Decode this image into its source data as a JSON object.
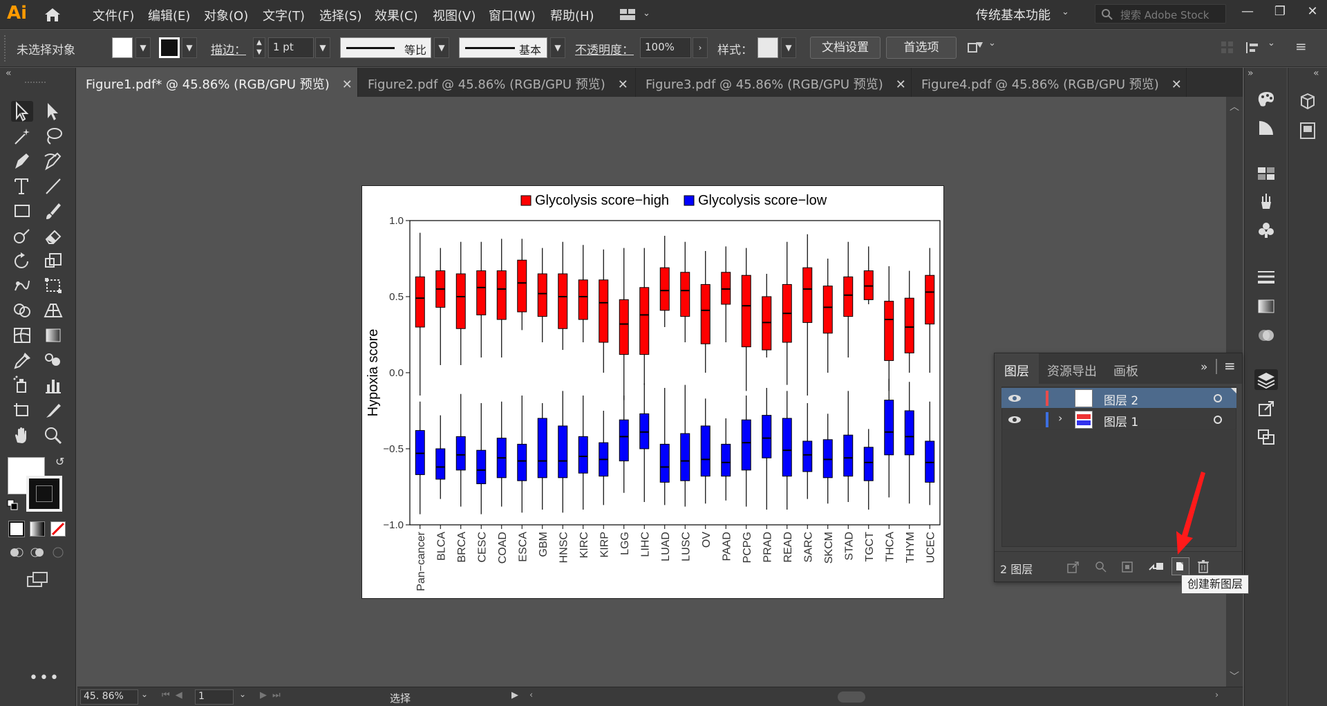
{
  "app": {
    "logo": "Ai",
    "menus": [
      "文件(F)",
      "编辑(E)",
      "对象(O)",
      "文字(T)",
      "选择(S)",
      "效果(C)",
      "视图(V)",
      "窗口(W)",
      "帮助(H)"
    ],
    "workspace": "传统基本功能",
    "stock_placeholder": "搜索 Adobe Stock"
  },
  "control": {
    "selection": "未选择对象",
    "stroke_label": "描边：",
    "stroke_value": "1 pt",
    "profile_label": "等比",
    "brush_label": "基本",
    "opacity_label": "不透明度：",
    "opacity_value": "100%",
    "style_label": "样式：",
    "doc_setup": "文档设置",
    "preferences": "首选项"
  },
  "tabs": [
    {
      "label": "Figure1.pdf* @ 45.86% (RGB/GPU 预览)",
      "active": true
    },
    {
      "label": "Figure2.pdf @ 45.86% (RGB/GPU 预览)",
      "active": false
    },
    {
      "label": "Figure3.pdf @ 45.86% (RGB/GPU 预览)",
      "active": false
    },
    {
      "label": "Figure4.pdf @ 45.86% (RGB/GPU 预览)",
      "active": false
    }
  ],
  "status": {
    "zoom": "45. 86%",
    "artboard": "1",
    "tool": "选择"
  },
  "layers_panel": {
    "tabs": [
      "图层",
      "资源导出",
      "画板"
    ],
    "layers": [
      {
        "name": "图层 2",
        "color": "#e84c4c",
        "selected": true
      },
      {
        "name": "图层 1",
        "color": "#3d6fe0",
        "selected": false
      }
    ],
    "count": "2 图层",
    "tooltip": "创建新图层"
  },
  "colors": {
    "high": "#ff0000",
    "low": "#0000ff",
    "selection": "#4d6a8c"
  },
  "chart_data": {
    "type": "boxplot",
    "ylabel": "Hypoxia score",
    "yticks": [
      "1.0",
      "0.5",
      "0.0",
      "−0.5",
      "−1.0"
    ],
    "ylim": [
      -1.0,
      1.0
    ],
    "legend_position": "top",
    "categories": [
      "Pan−cancer",
      "BLCA",
      "BRCA",
      "CESC",
      "COAD",
      "ESCA",
      "GBM",
      "HNSC",
      "KIRC",
      "KIRP",
      "LGG",
      "LIHC",
      "LUAD",
      "LUSC",
      "OV",
      "PAAD",
      "PCPG",
      "PRAD",
      "READ",
      "SARC",
      "SKCM",
      "STAD",
      "TGCT",
      "THCA",
      "THYM",
      "UCEC"
    ],
    "series": [
      {
        "name": "Glycolysis score−high",
        "color": "#ff0000",
        "boxes": [
          [
            -0.15,
            0.3,
            0.49,
            0.63,
            0.92
          ],
          [
            0.05,
            0.43,
            0.55,
            0.67,
            0.82
          ],
          [
            0.05,
            0.29,
            0.5,
            0.65,
            0.86
          ],
          [
            0.1,
            0.38,
            0.56,
            0.67,
            0.86
          ],
          [
            0.1,
            0.35,
            0.55,
            0.67,
            0.88
          ],
          [
            0.28,
            0.4,
            0.59,
            0.74,
            0.88
          ],
          [
            0.2,
            0.37,
            0.52,
            0.65,
            0.82
          ],
          [
            0.15,
            0.29,
            0.5,
            0.65,
            0.86
          ],
          [
            0.2,
            0.35,
            0.5,
            0.61,
            0.84
          ],
          [
            0.0,
            0.2,
            0.46,
            0.61,
            0.81
          ],
          [
            -0.18,
            0.12,
            0.32,
            0.48,
            0.82
          ],
          [
            -0.08,
            0.12,
            0.38,
            0.56,
            0.82
          ],
          [
            0.3,
            0.41,
            0.54,
            0.69,
            0.9
          ],
          [
            0.2,
            0.37,
            0.54,
            0.66,
            0.86
          ],
          [
            0.0,
            0.19,
            0.41,
            0.58,
            0.8
          ],
          [
            0.2,
            0.45,
            0.55,
            0.66,
            0.83
          ],
          [
            -0.12,
            0.17,
            0.44,
            0.64,
            0.82
          ],
          [
            0.1,
            0.15,
            0.33,
            0.5,
            0.65
          ],
          [
            -0.08,
            0.2,
            0.39,
            0.58,
            0.86
          ],
          [
            -0.15,
            0.33,
            0.55,
            0.69,
            0.91
          ],
          [
            0.0,
            0.26,
            0.43,
            0.57,
            0.75
          ],
          [
            0.1,
            0.37,
            0.51,
            0.63,
            0.86
          ],
          [
            0.45,
            0.48,
            0.57,
            0.67,
            0.83
          ],
          [
            -0.12,
            0.08,
            0.35,
            0.47,
            0.7
          ],
          [
            0.0,
            0.13,
            0.3,
            0.49,
            0.67
          ],
          [
            0.0,
            0.32,
            0.53,
            0.64,
            0.82
          ]
        ]
      },
      {
        "name": "Glycolysis score−low",
        "color": "#0000ff",
        "boxes": [
          [
            -0.93,
            -0.67,
            -0.53,
            -0.38,
            -0.19
          ],
          [
            -0.83,
            -0.7,
            -0.62,
            -0.5,
            -0.28
          ],
          [
            -0.88,
            -0.64,
            -0.54,
            -0.42,
            -0.14
          ],
          [
            -0.93,
            -0.73,
            -0.64,
            -0.51,
            -0.2
          ],
          [
            -0.88,
            -0.69,
            -0.56,
            -0.43,
            -0.19
          ],
          [
            -0.92,
            -0.71,
            -0.58,
            -0.47,
            -0.15
          ],
          [
            -0.9,
            -0.69,
            -0.58,
            -0.3,
            -0.2
          ],
          [
            -0.92,
            -0.69,
            -0.58,
            -0.35,
            -0.12
          ],
          [
            -0.9,
            -0.66,
            -0.55,
            -0.42,
            -0.15
          ],
          [
            -0.87,
            -0.68,
            -0.57,
            -0.46,
            -0.25
          ],
          [
            -0.79,
            -0.58,
            -0.42,
            -0.31,
            -0.15
          ],
          [
            -0.85,
            -0.5,
            -0.39,
            -0.27,
            -0.07
          ],
          [
            -0.87,
            -0.72,
            -0.62,
            -0.47,
            -0.1
          ],
          [
            -0.88,
            -0.71,
            -0.58,
            -0.4,
            -0.08
          ],
          [
            -0.86,
            -0.68,
            -0.57,
            -0.35,
            -0.17
          ],
          [
            -0.84,
            -0.68,
            -0.59,
            -0.47,
            -0.3
          ],
          [
            -0.88,
            -0.64,
            -0.46,
            -0.31,
            -0.15
          ],
          [
            -0.9,
            -0.56,
            -0.43,
            -0.28,
            -0.1
          ],
          [
            -0.9,
            -0.68,
            -0.51,
            -0.3,
            -0.12
          ],
          [
            -0.83,
            -0.65,
            -0.54,
            -0.45,
            -0.2
          ],
          [
            -0.86,
            -0.69,
            -0.57,
            -0.44,
            -0.27
          ],
          [
            -0.85,
            -0.68,
            -0.56,
            -0.41,
            -0.12
          ],
          [
            -0.9,
            -0.71,
            -0.59,
            -0.49,
            -0.37
          ],
          [
            -0.82,
            -0.54,
            -0.39,
            -0.18,
            -0.04
          ],
          [
            -0.86,
            -0.54,
            -0.42,
            -0.25,
            -0.06
          ],
          [
            -0.87,
            -0.72,
            -0.59,
            -0.45,
            -0.19
          ]
        ]
      }
    ]
  }
}
